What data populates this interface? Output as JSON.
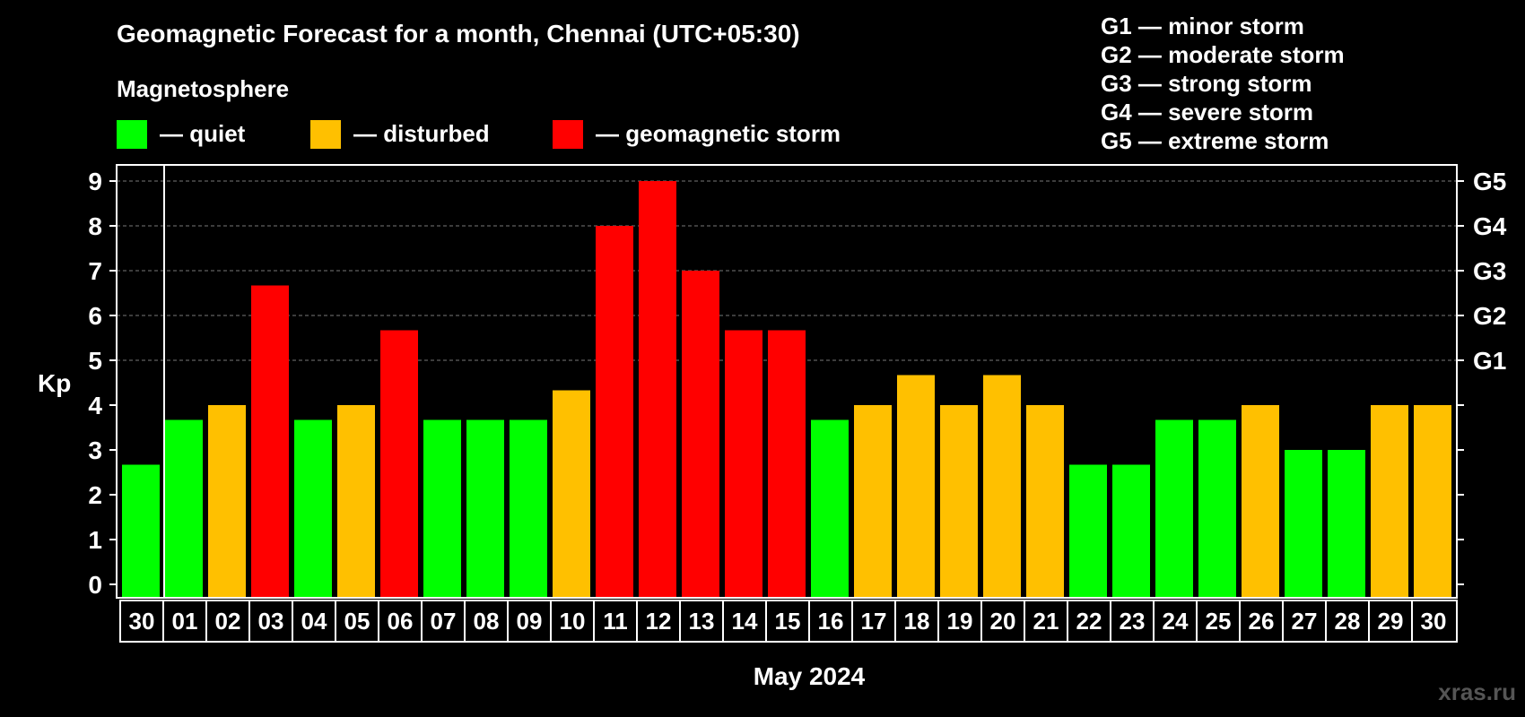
{
  "chart_data": {
    "type": "bar",
    "title": "Geomagnetic Forecast for a month, Chennai (UTC+05:30)",
    "subtitle": "Magnetosphere",
    "ylabel": "Kp",
    "xlabel": "May 2024",
    "ylim": [
      0,
      9
    ],
    "yticks": [
      "0",
      "1",
      "2",
      "3",
      "4",
      "5",
      "6",
      "7",
      "8",
      "9"
    ],
    "right_ticks": [
      {
        "value": 5,
        "label": "G1"
      },
      {
        "value": 6,
        "label": "G2"
      },
      {
        "value": 7,
        "label": "G3"
      },
      {
        "value": 8,
        "label": "G4"
      },
      {
        "value": 9,
        "label": "G5"
      }
    ],
    "grid": "dashed horizontal lines at 5-9",
    "categories": [
      "30",
      "01",
      "02",
      "03",
      "04",
      "05",
      "06",
      "07",
      "08",
      "09",
      "10",
      "11",
      "12",
      "13",
      "14",
      "15",
      "16",
      "17",
      "18",
      "19",
      "20",
      "21",
      "22",
      "23",
      "24",
      "25",
      "26",
      "27",
      "28",
      "29",
      "30"
    ],
    "values": [
      2.67,
      3.67,
      4,
      6.67,
      3.67,
      4,
      5.67,
      3.67,
      3.67,
      3.67,
      4.33,
      8,
      9,
      7,
      5.67,
      5.67,
      3.67,
      4,
      4.67,
      4,
      4.67,
      4,
      2.67,
      2.67,
      3.67,
      3.67,
      4,
      3,
      3,
      4,
      4
    ],
    "levels": [
      "quiet",
      "quiet",
      "disturbed",
      "storm",
      "quiet",
      "disturbed",
      "storm",
      "quiet",
      "quiet",
      "quiet",
      "disturbed",
      "storm",
      "storm",
      "storm",
      "storm",
      "storm",
      "quiet",
      "disturbed",
      "disturbed",
      "disturbed",
      "disturbed",
      "disturbed",
      "quiet",
      "quiet",
      "quiet",
      "quiet",
      "disturbed",
      "quiet",
      "quiet",
      "disturbed",
      "disturbed"
    ],
    "colors": {
      "quiet": "#00ff00",
      "disturbed": "#ffc000",
      "storm": "#ff0000"
    },
    "legend": [
      {
        "key": "quiet",
        "label": "— quiet"
      },
      {
        "key": "disturbed",
        "label": "— disturbed"
      },
      {
        "key": "storm",
        "label": "— geomagnetic storm"
      }
    ],
    "scale_legend": [
      "G1 — minor storm",
      "G2 — moderate storm",
      "G3 — strong storm",
      "G4 — severe storm",
      "G5 — extreme storm"
    ],
    "watermark": "xras.ru"
  }
}
